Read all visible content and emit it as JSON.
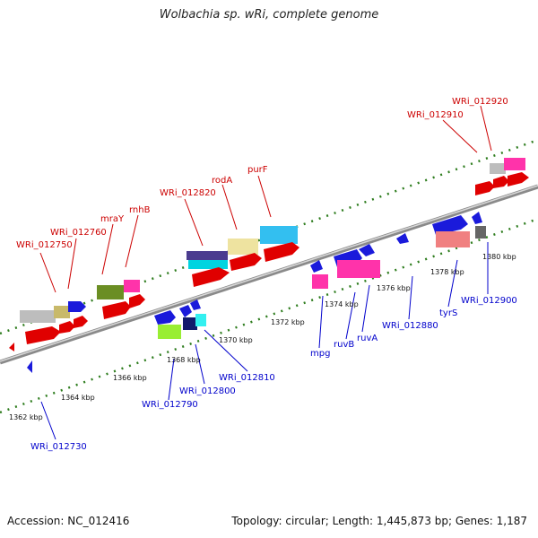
{
  "title": "Wolbachia sp. wRi, complete genome",
  "accession": "Accession: NC_012416",
  "summary": "Topology: circular; Length: 1,445,873 bp; Genes: 1,187",
  "colors": {
    "red_label": "#cc0000",
    "blue_label": "#0000cc",
    "tick_green": "#2e7d1e",
    "backbone": "#8a8a8a"
  },
  "scale_labels": [
    "1362 kbp",
    "1364 kbp",
    "1366 kbp",
    "1368 kbp",
    "1370 kbp",
    "1372 kbp",
    "1374 kbp",
    "1376 kbp",
    "1378 kbp",
    "1380 kbp"
  ],
  "top_genes": [
    "WRi_012750",
    "WRi_012760",
    "mraY",
    "rnhB",
    "WRi_012820",
    "rodA",
    "purF",
    "WRi_012910",
    "WRi_012920"
  ],
  "bottom_genes": [
    "WRi_012730",
    "WRi_012790",
    "WRi_012800",
    "WRi_012810",
    "mpg",
    "ruvB",
    "ruvA",
    "WRi_012880",
    "tyrS",
    "WRi_012900"
  ]
}
